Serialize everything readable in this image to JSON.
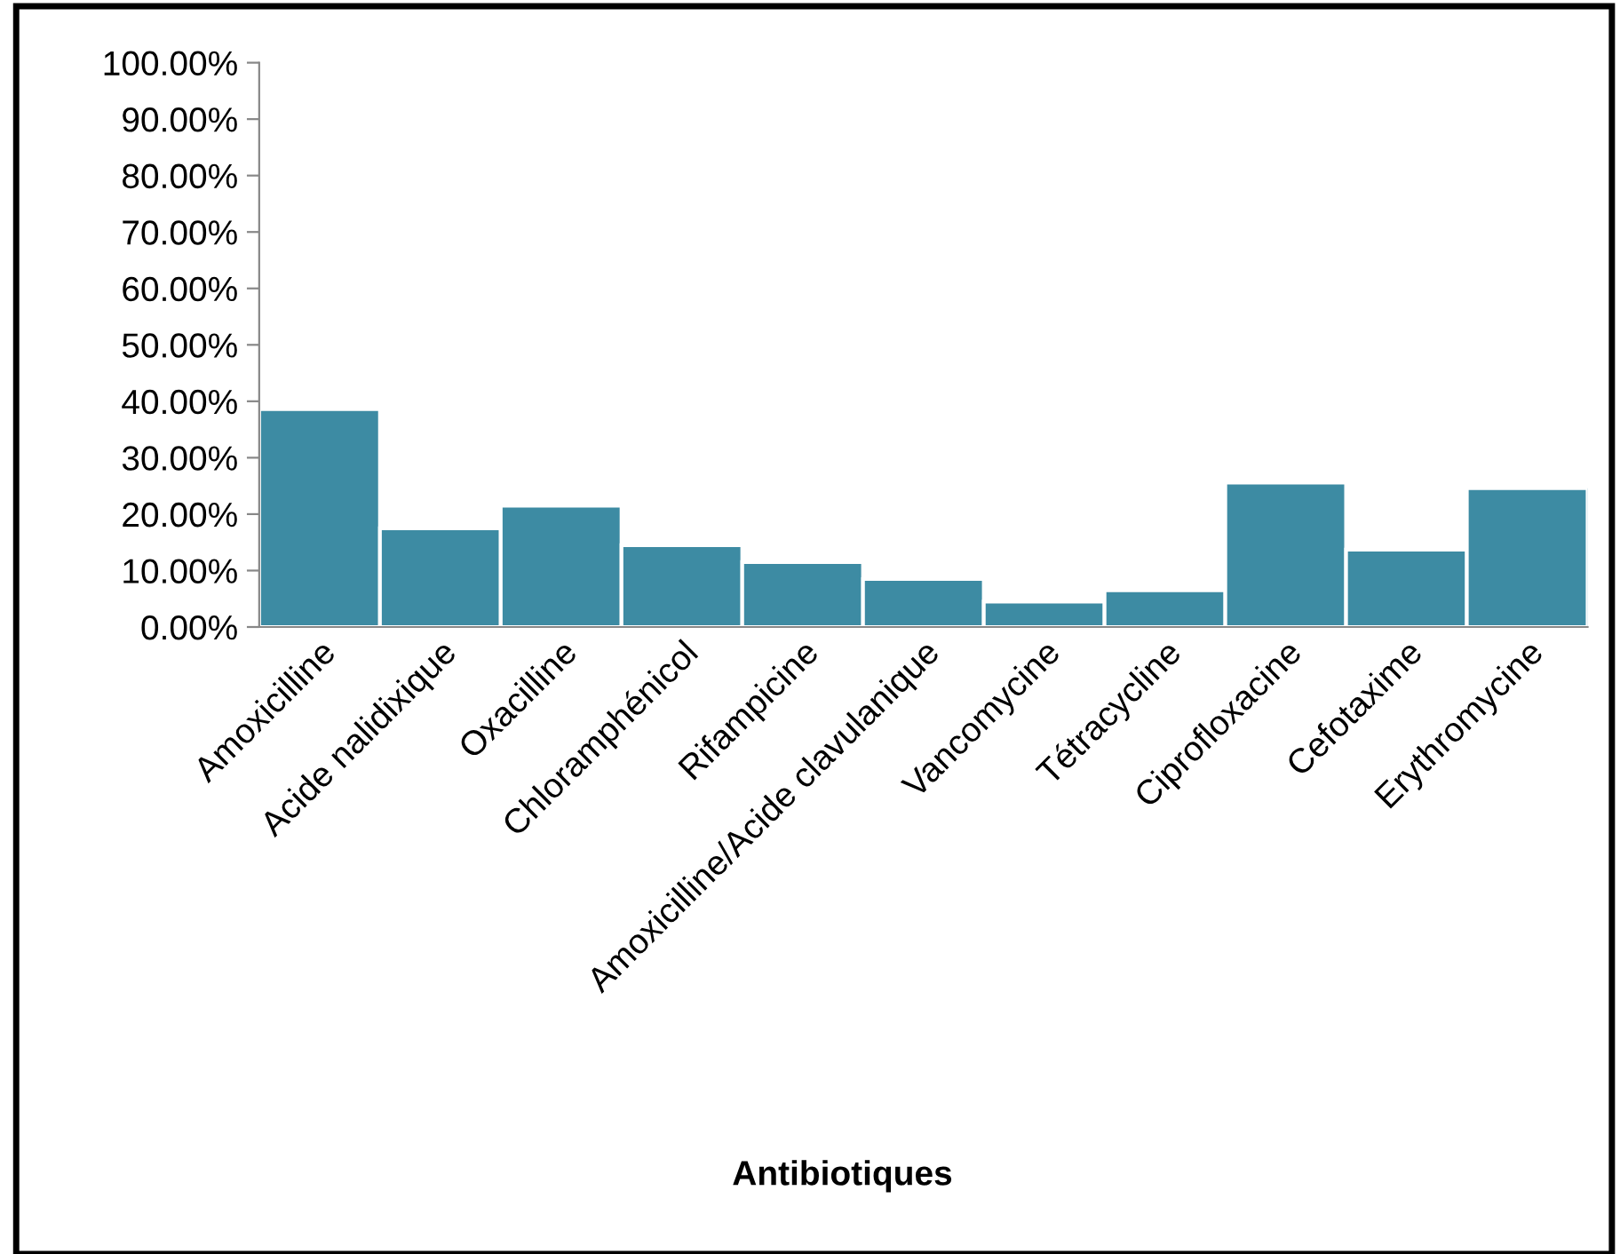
{
  "chart_data": {
    "type": "bar",
    "xlabel": "Antibiotiques",
    "categories": [
      "Amoxicilline",
      "Acide nalidixique",
      "Oxacilline",
      "Chloramphénicol",
      "Rifampicine",
      "Amoxicilline/Acide clavulanique",
      "Vancomycine",
      "Tétracycline",
      "Ciprofloxacine",
      "Cefotaxime",
      "Erythromycine"
    ],
    "values": [
      38.6,
      17.5,
      21.5,
      14.5,
      11.5,
      8.5,
      4.5,
      6.5,
      25.6,
      13.7,
      24.6
    ],
    "color": "#3d8ba3",
    "ylim": [
      0,
      100
    ],
    "yticks": [
      {
        "value": 0,
        "label": "0.00%"
      },
      {
        "value": 10,
        "label": "10.00%"
      },
      {
        "value": 20,
        "label": "20.00%"
      },
      {
        "value": 30,
        "label": "30.00%"
      },
      {
        "value": 40,
        "label": "40.00%"
      },
      {
        "value": 50,
        "label": "50.00%"
      },
      {
        "value": 60,
        "label": "60.00%"
      },
      {
        "value": 70,
        "label": "70.00%"
      },
      {
        "value": 80,
        "label": "80.00%"
      },
      {
        "value": 90,
        "label": "90.00%"
      },
      {
        "value": 100,
        "label": "100.00%"
      }
    ],
    "grid": false
  }
}
